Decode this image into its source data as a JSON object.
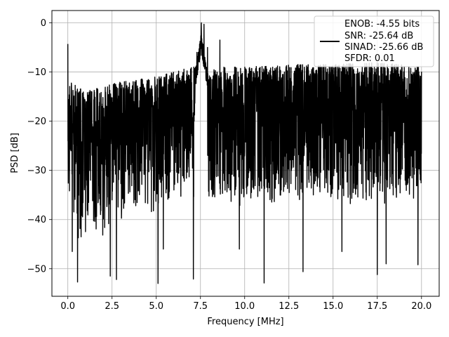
{
  "chart_data": {
    "type": "line",
    "xlabel": "Frequency [MHz]",
    "ylabel": "PSD [dB]",
    "xlim": [
      -0.9,
      21.0
    ],
    "ylim": [
      -55.6,
      2.5
    ],
    "x_ticks": [
      0.0,
      2.5,
      5.0,
      7.5,
      10.0,
      12.5,
      15.0,
      17.5,
      20.0
    ],
    "x_tick_labels": [
      "0.0",
      "2.5",
      "5.0",
      "7.5",
      "10.0",
      "12.5",
      "15.0",
      "17.5",
      "20.0"
    ],
    "y_ticks": [
      0,
      -10,
      -20,
      -30,
      -40,
      -50
    ],
    "y_tick_labels": [
      "0",
      "−10",
      "−20",
      "−30",
      "−40",
      "−50"
    ],
    "grid": true,
    "legend_placement": "top-right",
    "series": [
      {
        "name": "ENOB: -4.55 bits\nSNR: -25.64 dB\nSINAD: -25.66 dB\nSFDR: 0.01",
        "legend_lines": [
          "ENOB: -4.55 bits",
          "SNR: -25.64 dB",
          "SINAD: -25.66 dB",
          "SFDR: 0.01"
        ],
        "color": "#000000",
        "x_range": [
          0.0,
          20.0
        ],
        "noise_upper_envelope": [
          [
            0.0,
            -13
          ],
          [
            0.1,
            -12
          ],
          [
            1.0,
            -14
          ],
          [
            2.0,
            -13
          ],
          [
            3.0,
            -12
          ],
          [
            5.0,
            -11
          ],
          [
            7.0,
            -9
          ],
          [
            10.0,
            -9
          ],
          [
            12.5,
            -8.5
          ],
          [
            15.0,
            -8.5
          ],
          [
            17.5,
            -8
          ],
          [
            20.0,
            -9
          ]
        ],
        "noise_lower_envelope": [
          [
            0.0,
            -35
          ],
          [
            0.5,
            -45
          ],
          [
            1.0,
            -43
          ],
          [
            2.0,
            -42
          ],
          [
            3.0,
            -38
          ],
          [
            5.0,
            -37
          ],
          [
            7.0,
            -36
          ],
          [
            10.0,
            -36
          ],
          [
            12.5,
            -35
          ],
          [
            15.0,
            -36
          ],
          [
            17.5,
            -35
          ],
          [
            20.0,
            -35
          ]
        ],
        "peaks": [
          {
            "x": 0.0,
            "y": -4.3
          },
          {
            "x": 7.55,
            "y": 0.0
          },
          {
            "x": 7.7,
            "y": -0.3
          },
          {
            "x": 7.3,
            "y": -6.0
          },
          {
            "x": 7.9,
            "y": -5.0
          },
          {
            "x": 8.6,
            "y": -3.5
          }
        ],
        "dips": [
          {
            "x": 0.25,
            "y": -46.5
          },
          {
            "x": 0.55,
            "y": -52.7
          },
          {
            "x": 2.4,
            "y": -51.5
          },
          {
            "x": 2.75,
            "y": -52.2
          },
          {
            "x": 5.1,
            "y": -53.0
          },
          {
            "x": 5.4,
            "y": -46.0
          },
          {
            "x": 7.1,
            "y": -52.1
          },
          {
            "x": 9.7,
            "y": -46.0
          },
          {
            "x": 11.1,
            "y": -52.9
          },
          {
            "x": 13.3,
            "y": -50.6
          },
          {
            "x": 15.5,
            "y": -46.5
          },
          {
            "x": 17.5,
            "y": -51.2
          },
          {
            "x": 18.0,
            "y": -49.0
          },
          {
            "x": 19.8,
            "y": -49.2
          }
        ]
      }
    ]
  }
}
